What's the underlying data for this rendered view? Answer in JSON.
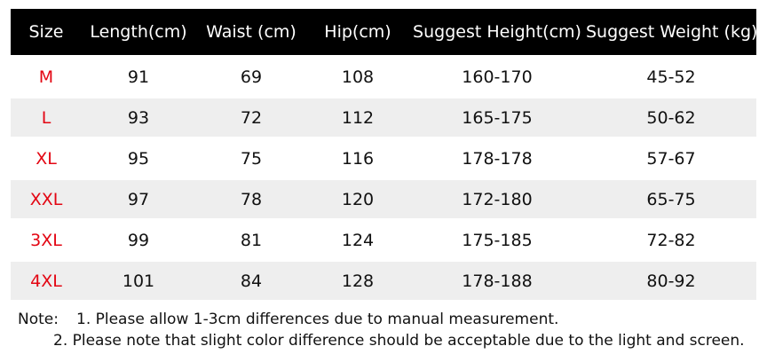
{
  "table": {
    "headers": [
      "Size",
      "Length(cm)",
      "Waist (cm)",
      "Hip(cm)",
      "Suggest Height(cm)",
      "Suggest Weight (kg)"
    ],
    "rows": [
      [
        "M",
        "91",
        "69",
        "108",
        "160-170",
        "45-52"
      ],
      [
        "L",
        "93",
        "72",
        "112",
        "165-175",
        "50-62"
      ],
      [
        "XL",
        "95",
        "75",
        "116",
        "178-178",
        "57-67"
      ],
      [
        "XXL",
        "97",
        "78",
        "120",
        "172-180",
        "65-75"
      ],
      [
        "3XL",
        "99",
        "81",
        "124",
        "175-185",
        "72-82"
      ],
      [
        "4XL",
        "101",
        "84",
        "128",
        "178-188",
        "80-92"
      ]
    ]
  },
  "notes": {
    "prefix": "Note:",
    "line1": "1. Please allow 1-3cm differences due to manual measurement.",
    "line2": "2. Please note that slight color difference should be acceptable due to the light and screen."
  },
  "colors": {
    "header_bg": "#000000",
    "header_text": "#ffffff",
    "size_text": "#e30613",
    "alt_row_bg": "#eeeeee"
  }
}
